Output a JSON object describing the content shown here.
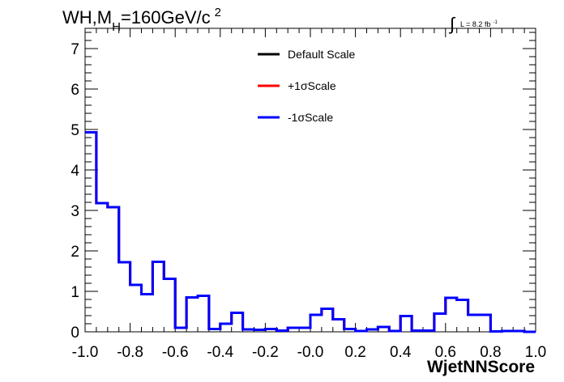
{
  "title": {
    "main": "WH,M",
    "sub": "H",
    "rest": "=160GeV/c",
    "sup": "2"
  },
  "lumi": {
    "integral_symbol": "∫",
    "text": "L = 8.2 fb",
    "sup": "-1"
  },
  "chart_data": {
    "type": "histogram",
    "xlabel": "WjetNNScore",
    "ylabel": "",
    "xlim": [
      -1.0,
      1.0
    ],
    "ylim": [
      0,
      7.5
    ],
    "x_ticks": [
      -1.0,
      -0.8,
      -0.6,
      -0.4,
      -0.2,
      0.0,
      0.2,
      0.4,
      0.6,
      0.8,
      1.0
    ],
    "x_tick_labels": [
      "-1.0",
      "-0.8",
      "-0.6",
      "-0.4",
      "-0.2",
      "-0.0",
      "0.2",
      "0.4",
      "0.6",
      "0.8",
      "1.0"
    ],
    "y_ticks": [
      0,
      1,
      2,
      3,
      4,
      5,
      6,
      7
    ],
    "y_tick_labels": [
      "0",
      "1",
      "2",
      "3",
      "4",
      "5",
      "6",
      "7"
    ],
    "bin_edges": [
      -1.0,
      -0.95,
      -0.9,
      -0.85,
      -0.8,
      -0.75,
      -0.7,
      -0.65,
      -0.6,
      -0.55,
      -0.5,
      -0.45,
      -0.4,
      -0.35,
      -0.3,
      -0.25,
      -0.2,
      -0.15,
      -0.1,
      -0.05,
      0.0,
      0.05,
      0.1,
      0.15,
      0.2,
      0.25,
      0.3,
      0.35,
      0.4,
      0.45,
      0.5,
      0.55,
      0.6,
      0.65,
      0.7,
      0.75,
      0.8,
      0.85,
      0.9,
      0.95,
      1.0
    ],
    "legend_position": "top-center",
    "series": [
      {
        "name": "Default Scale",
        "color": "#000000",
        "values": [
          4.93,
          3.18,
          3.08,
          1.72,
          1.16,
          0.93,
          1.73,
          1.31,
          0.1,
          0.85,
          0.89,
          0.07,
          0.2,
          0.47,
          0.06,
          0.05,
          0.07,
          0.03,
          0.1,
          0.1,
          0.42,
          0.57,
          0.31,
          0.07,
          0.02,
          0.06,
          0.12,
          0.02,
          0.39,
          0.03,
          0.03,
          0.45,
          0.84,
          0.79,
          0.42,
          0.42,
          0.01,
          0.02,
          0.02,
          0.0
        ]
      },
      {
        "name": "+1σScale",
        "color": "#ff0000",
        "values": [
          4.93,
          3.18,
          3.08,
          1.72,
          1.16,
          0.93,
          1.73,
          1.31,
          0.1,
          0.85,
          0.89,
          0.07,
          0.2,
          0.47,
          0.06,
          0.05,
          0.07,
          0.03,
          0.1,
          0.1,
          0.42,
          0.57,
          0.31,
          0.07,
          0.02,
          0.06,
          0.12,
          0.02,
          0.39,
          0.03,
          0.03,
          0.45,
          0.84,
          0.79,
          0.42,
          0.42,
          0.01,
          0.02,
          0.02,
          0.0
        ]
      },
      {
        "name": "-1σScale",
        "color": "#0000ff",
        "values": [
          4.93,
          3.18,
          3.08,
          1.72,
          1.16,
          0.93,
          1.73,
          1.31,
          0.1,
          0.85,
          0.89,
          0.07,
          0.2,
          0.47,
          0.06,
          0.05,
          0.07,
          0.03,
          0.1,
          0.1,
          0.42,
          0.57,
          0.31,
          0.07,
          0.02,
          0.06,
          0.12,
          0.02,
          0.39,
          0.03,
          0.03,
          0.45,
          0.84,
          0.79,
          0.42,
          0.42,
          0.01,
          0.02,
          0.02,
          0.0
        ]
      }
    ]
  }
}
